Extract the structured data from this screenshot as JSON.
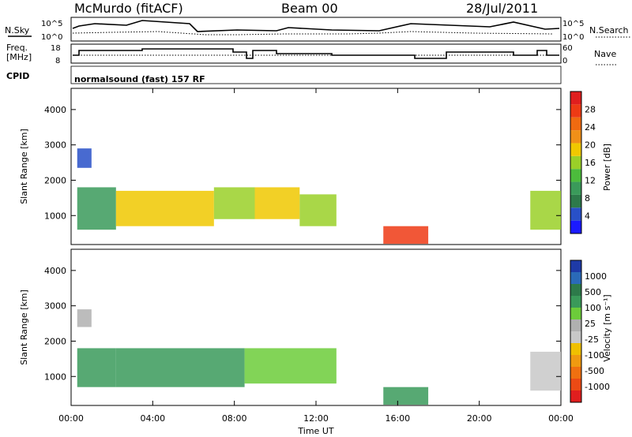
{
  "header": {
    "station": "McMurdo (fitACF)",
    "beam": "Beam 00",
    "date": "28/Jul/2011"
  },
  "noise_panel": {
    "left_label": "N.Sky",
    "right_label": "N.Search",
    "left_ticks": [
      "10^5",
      "10^0"
    ],
    "right_ticks": [
      "10^5",
      "10^0"
    ]
  },
  "freq_panel": {
    "left_label_line1": "Freq.",
    "left_label_line2": "[MHz]",
    "right_label": "Nave",
    "left_ticks": [
      "18",
      "8"
    ],
    "right_ticks": [
      "60",
      "0"
    ]
  },
  "cpid": {
    "label": "CPID",
    "program": "normalsound (fast) 157 RF"
  },
  "chart_data": [
    {
      "type": "heatmap",
      "name": "power",
      "ylabel": "Slant Range [km]",
      "xlabel": "",
      "xlim": [
        0,
        24
      ],
      "ylim": [
        180,
        4600
      ],
      "x_ticks": [
        "00:00",
        "04:00",
        "08:00",
        "12:00",
        "16:00",
        "20:00",
        "00:00"
      ],
      "y_ticks": [
        1000,
        2000,
        3000,
        4000
      ],
      "colorbar": {
        "label": "Power [dB]",
        "ticks": [
          "4",
          "8",
          "12",
          "16",
          "20",
          "24",
          "28"
        ],
        "range": [
          0,
          30
        ],
        "colors": [
          "#1a1aff",
          "#2850c8",
          "#2d7a4a",
          "#3a9a5a",
          "#4cbc3c",
          "#9ad028",
          "#f0c800",
          "#f09018",
          "#f06a10",
          "#ee3a14",
          "#e01e1e"
        ]
      },
      "regions": [
        {
          "t0": 0.3,
          "t1": 1.0,
          "r0": 2350,
          "r1": 2900,
          "level": 3
        },
        {
          "t0": 0.3,
          "t1": 2.2,
          "r0": 600,
          "r1": 1800,
          "level": 10
        },
        {
          "t0": 2.2,
          "t1": 7.0,
          "r0": 700,
          "r1": 1700,
          "level": 17
        },
        {
          "t0": 7.0,
          "t1": 9.0,
          "r0": 900,
          "r1": 1800,
          "level": 16
        },
        {
          "t0": 9.0,
          "t1": 11.2,
          "r0": 900,
          "r1": 1800,
          "level": 18
        },
        {
          "t0": 11.2,
          "t1": 13.0,
          "r0": 700,
          "r1": 1600,
          "level": 14
        },
        {
          "t0": 15.3,
          "t1": 17.5,
          "r0": 200,
          "r1": 700,
          "level": 26
        },
        {
          "t0": 22.5,
          "t1": 24.0,
          "r0": 600,
          "r1": 1700,
          "level": 14
        }
      ]
    },
    {
      "type": "heatmap",
      "name": "velocity",
      "ylabel": "Slant Range [km]",
      "xlabel": "Time UT",
      "xlim": [
        0,
        24
      ],
      "ylim": [
        180,
        4600
      ],
      "x_ticks": [
        "00:00",
        "04:00",
        "08:00",
        "12:00",
        "16:00",
        "20:00",
        "00:00"
      ],
      "y_ticks": [
        1000,
        2000,
        3000,
        4000
      ],
      "colorbar": {
        "label": "Velocity [m s⁻¹]",
        "ticks": [
          "1000",
          "500",
          "100",
          "25",
          "-25",
          "-100",
          "-500",
          "-1000"
        ],
        "colors": [
          "#1e3aa8",
          "#2a6ab8",
          "#2d7a4a",
          "#3a9a5a",
          "#6ccc3a",
          "#b0b0b0",
          "#c8c8c8",
          "#f0c000",
          "#f09a10",
          "#f07010",
          "#ec4a14",
          "#e01e1e"
        ]
      },
      "regions": [
        {
          "t0": 0.3,
          "t1": 1.0,
          "r0": 2400,
          "r1": 2900,
          "level": 0
        },
        {
          "t0": 0.3,
          "t1": 2.2,
          "r0": 700,
          "r1": 1800,
          "level": 100
        },
        {
          "t0": 2.2,
          "t1": 8.5,
          "r0": 700,
          "r1": 1800,
          "level": 200
        },
        {
          "t0": 8.5,
          "t1": 13.0,
          "r0": 800,
          "r1": 1800,
          "level": 50
        },
        {
          "t0": 15.3,
          "t1": 17.5,
          "r0": 200,
          "r1": 700,
          "level": 100
        },
        {
          "t0": 22.5,
          "t1": 24.0,
          "r0": 600,
          "r1": 1700,
          "level": -100
        }
      ]
    }
  ]
}
